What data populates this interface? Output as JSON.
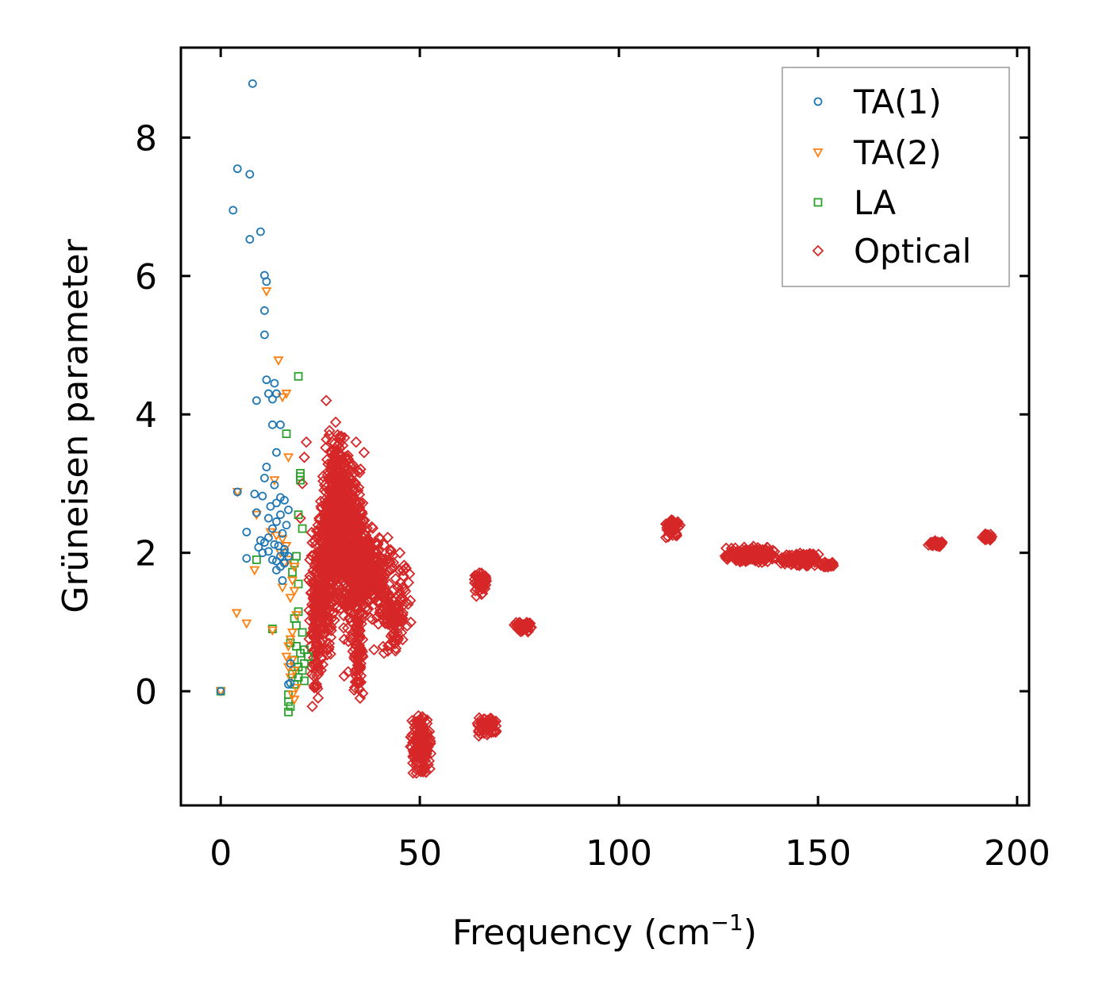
{
  "chart_data": {
    "type": "scatter",
    "title": "",
    "xlabel": "Frequency (cm",
    "xlabel_sup": "−1",
    "xlabel_close": ")",
    "ylabel": "Grüneisen parameter",
    "xlim": [
      -10,
      203
    ],
    "ylim": [
      -1.65,
      9.3
    ],
    "xticks": [
      0,
      50,
      100,
      150,
      200
    ],
    "xtick_labels": [
      "0",
      "50",
      "100",
      "150",
      "200"
    ],
    "yticks": [
      0,
      2,
      4,
      6,
      8
    ],
    "ytick_labels": [
      "0",
      "2",
      "4",
      "6",
      "8"
    ],
    "grid": false,
    "legend_position": "top-right",
    "series": [
      {
        "name": "TA(1)",
        "marker": "circle",
        "color": "#1f77b4",
        "points": [
          [
            0,
            0
          ],
          [
            8,
            8.78
          ],
          [
            4.2,
            7.55
          ],
          [
            7.3,
            7.47
          ],
          [
            3.1,
            6.95
          ],
          [
            10,
            6.64
          ],
          [
            7.3,
            6.53
          ],
          [
            11,
            6.01
          ],
          [
            11.5,
            5.92
          ],
          [
            11,
            5.5
          ],
          [
            11,
            5.15
          ],
          [
            11.5,
            4.5
          ],
          [
            13.5,
            4.45
          ],
          [
            12,
            4.3
          ],
          [
            14,
            4.3
          ],
          [
            13,
            4.22
          ],
          [
            9,
            4.2
          ],
          [
            13,
            3.85
          ],
          [
            15,
            3.85
          ],
          [
            14,
            3.45
          ],
          [
            11.5,
            3.24
          ],
          [
            11,
            3.08
          ],
          [
            13.5,
            2.98
          ],
          [
            4.2,
            2.88
          ],
          [
            8.5,
            2.85
          ],
          [
            10.5,
            2.82
          ],
          [
            15,
            2.8
          ],
          [
            16,
            2.76
          ],
          [
            14,
            2.72
          ],
          [
            12.5,
            2.67
          ],
          [
            17,
            2.62
          ],
          [
            9,
            2.58
          ],
          [
            15,
            2.55
          ],
          [
            12,
            2.5
          ],
          [
            14,
            2.45
          ],
          [
            16.5,
            2.4
          ],
          [
            13,
            2.35
          ],
          [
            6.5,
            2.3
          ],
          [
            15.5,
            2.28
          ],
          [
            12,
            2.22
          ],
          [
            10,
            2.18
          ],
          [
            11,
            2.15
          ],
          [
            13.5,
            2.12
          ],
          [
            14.5,
            2.1
          ],
          [
            9.5,
            2.08
          ],
          [
            16,
            2.05
          ],
          [
            12,
            2.02
          ],
          [
            10.5,
            2.0
          ],
          [
            15,
            1.95
          ],
          [
            6.5,
            1.92
          ],
          [
            13,
            1.9
          ],
          [
            14,
            1.88
          ],
          [
            16,
            1.85
          ],
          [
            15,
            1.8
          ],
          [
            14,
            1.75
          ],
          [
            17,
            1.95
          ],
          [
            16,
            2.0
          ],
          [
            15.5,
            1.6
          ],
          [
            17.5,
            0.4
          ],
          [
            17,
            0.1
          ],
          [
            17.5,
            0.12
          ]
        ]
      },
      {
        "name": "TA(2)",
        "marker": "triangle-down",
        "color": "#ff7f0e",
        "points": [
          [
            0,
            0
          ],
          [
            11.5,
            5.78
          ],
          [
            14.5,
            4.78
          ],
          [
            16.5,
            4.3
          ],
          [
            15.5,
            4.25
          ],
          [
            17,
            3.38
          ],
          [
            13.5,
            3.05
          ],
          [
            4.2,
            2.88
          ],
          [
            9,
            2.55
          ],
          [
            12.5,
            2.3
          ],
          [
            14,
            2.25
          ],
          [
            15.5,
            2.2
          ],
          [
            16.5,
            2.1
          ],
          [
            15,
            2.0
          ],
          [
            17,
            1.9
          ],
          [
            16,
            1.85
          ],
          [
            18.5,
            1.8
          ],
          [
            8.5,
            1.75
          ],
          [
            18,
            1.6
          ],
          [
            15.5,
            1.5
          ],
          [
            18.5,
            1.45
          ],
          [
            17.5,
            1.35
          ],
          [
            4,
            1.13
          ],
          [
            6.5,
            0.98
          ],
          [
            13,
            0.88
          ],
          [
            19,
            1.1
          ],
          [
            18,
            0.85
          ],
          [
            17.5,
            0.75
          ],
          [
            17,
            0.65
          ],
          [
            16.5,
            0.5
          ],
          [
            18,
            0.45
          ],
          [
            17,
            0.35
          ],
          [
            18.5,
            0.3
          ],
          [
            17.5,
            0.2
          ],
          [
            19,
            0.05
          ],
          [
            18,
            -0.05
          ],
          [
            18.5,
            -0.12
          ]
        ]
      },
      {
        "name": "LA",
        "marker": "square",
        "color": "#2ca02c",
        "points": [
          [
            0,
            0
          ],
          [
            19.5,
            4.55
          ],
          [
            16.5,
            3.72
          ],
          [
            20,
            3.15
          ],
          [
            20,
            3.1
          ],
          [
            20,
            3.05
          ],
          [
            19.5,
            2.55
          ],
          [
            20.5,
            2.35
          ],
          [
            9,
            1.9
          ],
          [
            19,
            1.95
          ],
          [
            18.5,
            1.85
          ],
          [
            18,
            1.72
          ],
          [
            19.5,
            1.55
          ],
          [
            13,
            0.9
          ],
          [
            19.5,
            1.15
          ],
          [
            18.5,
            1.05
          ],
          [
            19,
            0.95
          ],
          [
            20.5,
            0.85
          ],
          [
            17.5,
            0.7
          ],
          [
            19,
            0.65
          ],
          [
            21,
            0.6
          ],
          [
            20,
            0.55
          ],
          [
            22,
            0.5
          ],
          [
            18.5,
            0.45
          ],
          [
            21,
            0.4
          ],
          [
            19.5,
            0.35
          ],
          [
            20.5,
            0.3
          ],
          [
            18,
            0.25
          ],
          [
            19.5,
            0.2
          ],
          [
            21,
            0.15
          ],
          [
            18.5,
            0.1
          ],
          [
            17,
            -0.05
          ],
          [
            17,
            -0.15
          ],
          [
            17.5,
            -0.22
          ],
          [
            17,
            -0.3
          ]
        ]
      },
      {
        "name": "Optical",
        "marker": "diamond",
        "color": "#d62728",
        "clusters": [
          {
            "x": [
              22,
              26
            ],
            "y": [
              -0.25,
              2.5
            ],
            "n": 160
          },
          {
            "x": [
              24,
              29
            ],
            "y": [
              0.3,
              3.2
            ],
            "n": 200
          },
          {
            "x": [
              26,
              32
            ],
            "y": [
              1.0,
              3.95
            ],
            "n": 320
          },
          {
            "x": [
              27,
              36
            ],
            "y": [
              1.5,
              3.5
            ],
            "n": 300
          },
          {
            "x": [
              30,
              38
            ],
            "y": [
              0.6,
              2.6
            ],
            "n": 220
          },
          {
            "x": [
              32,
              40
            ],
            "y": [
              1.2,
              2.4
            ],
            "n": 200
          },
          {
            "x": [
              33,
              36
            ],
            "y": [
              -0.1,
              1.1
            ],
            "n": 60
          },
          {
            "x": [
              36,
              44
            ],
            "y": [
              0.9,
              2.3
            ],
            "n": 120
          },
          {
            "x": [
              40,
              47
            ],
            "y": [
              0.55,
              1.5
            ],
            "n": 80
          },
          {
            "x": [
              43,
              48
            ],
            "y": [
              0.9,
              2.0
            ],
            "n": 30
          },
          {
            "x": [
              47.5,
              53
            ],
            "y": [
              -1.2,
              -0.3
            ],
            "n": 160
          },
          {
            "x": [
              63.5,
              67
            ],
            "y": [
              1.35,
              1.75
            ],
            "n": 50
          },
          {
            "x": [
              63.5,
              69.5
            ],
            "y": [
              -0.65,
              -0.35
            ],
            "n": 60
          },
          {
            "x": [
              73.5,
              78.5
            ],
            "y": [
              0.85,
              1.02
            ],
            "n": 60
          },
          {
            "x": [
              111.5,
              115.5
            ],
            "y": [
              2.2,
              2.52
            ],
            "n": 50
          },
          {
            "x": [
              126,
              140
            ],
            "y": [
              1.85,
              2.1
            ],
            "n": 200
          },
          {
            "x": [
              140,
              151
            ],
            "y": [
              1.8,
              2.0
            ],
            "n": 160
          },
          {
            "x": [
              150,
              155
            ],
            "y": [
              1.78,
              1.88
            ],
            "n": 30
          },
          {
            "x": [
              177.5,
              181.5
            ],
            "y": [
              2.08,
              2.18
            ],
            "n": 40
          },
          {
            "x": [
              191,
              194
            ],
            "y": [
              2.18,
              2.28
            ],
            "n": 30
          }
        ],
        "points": [
          [
            26.5,
            4.2
          ],
          [
            21.5,
            3.6
          ],
          [
            34,
            3.6
          ],
          [
            36,
            3.45
          ],
          [
            21,
            3.38
          ],
          [
            20.5,
            3.0
          ],
          [
            20,
            2.5
          ],
          [
            40,
            2.2
          ],
          [
            41,
            1.9
          ],
          [
            45,
            2.0
          ],
          [
            33,
            1.95
          ],
          [
            31,
            0.75
          ],
          [
            32,
            0.28
          ],
          [
            31,
            0.22
          ],
          [
            35,
            -0.1
          ],
          [
            41,
            0.55
          ],
          [
            42,
            0.58
          ],
          [
            38.5,
            0.6
          ],
          [
            23,
            -0.22
          ],
          [
            44.5,
            1.5
          ],
          [
            65.5,
            1.4
          ],
          [
            68,
            -0.4
          ]
        ]
      }
    ]
  }
}
